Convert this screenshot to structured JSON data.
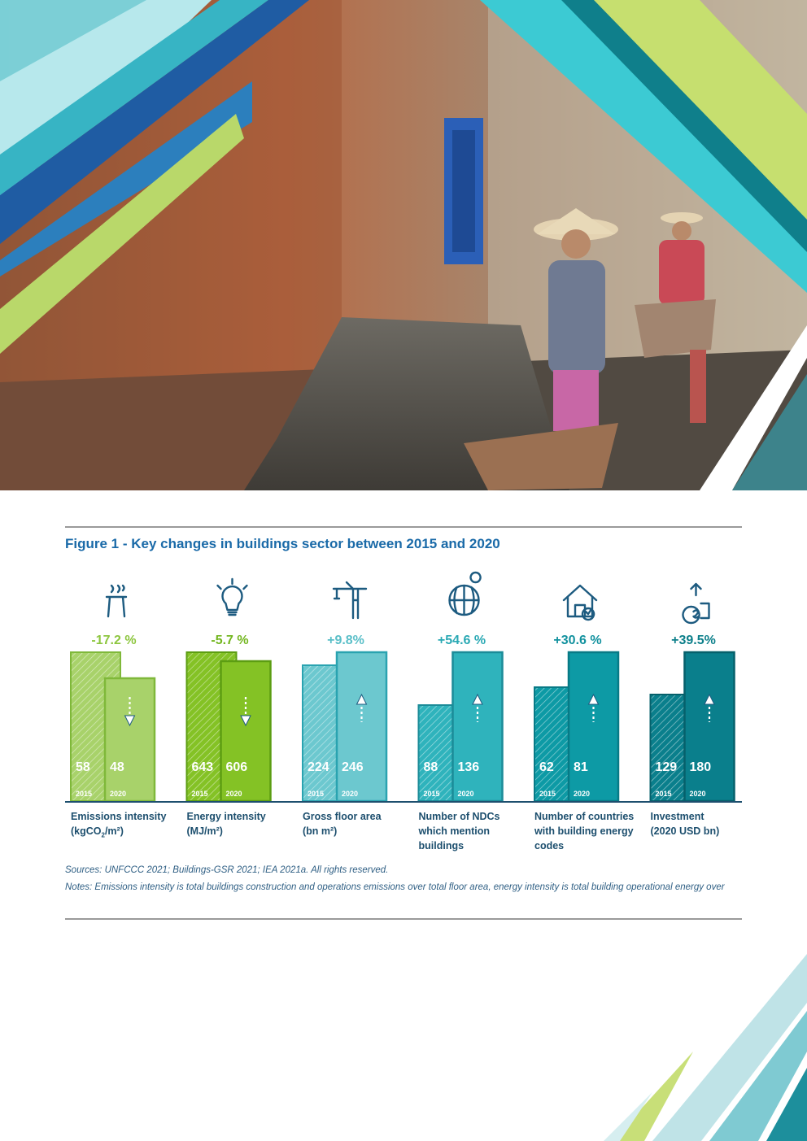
{
  "figure": {
    "title": "Figure 1 - Key changes in buildings sector between 2015 and 2020",
    "sources": "Sources: UNFCCC 2021; Buildings-GSR 2021; IEA 2021a. All rights reserved.",
    "notes": "Notes: Emissions intensity is total buildings construction and operations emissions over total floor area, energy intensity is total building operational energy over"
  },
  "chart_data": {
    "type": "bar",
    "years": [
      "2015",
      "2020"
    ],
    "categories": [
      {
        "label": [
          "Emissions intensity",
          "(kgCO2/m²)"
        ],
        "icon": "factory-chimney-icon",
        "change": "-17.2 %",
        "direction": "down",
        "values": [
          58,
          48
        ],
        "value_labels": [
          "58",
          "48"
        ],
        "color": "#a8d26a",
        "dark": "#7fb83a",
        "text": "#8dc63f"
      },
      {
        "label": [
          "Energy intensity",
          "(MJ/m²)"
        ],
        "icon": "light-bulb-icon",
        "change": "-5.7 %",
        "direction": "down",
        "values": [
          643,
          606
        ],
        "value_labels": [
          "643",
          "606"
        ],
        "color": "#84c225",
        "dark": "#5c9d12",
        "text": "#73b61f"
      },
      {
        "label": [
          "Gross floor area",
          "(bn m²)"
        ],
        "icon": "crane-icon",
        "change": "+9.8%",
        "direction": "up",
        "values": [
          224,
          246
        ],
        "value_labels": [
          "224",
          "246"
        ],
        "color": "#6cc8cf",
        "dark": "#2aa3b0",
        "text": "#5abfc8"
      },
      {
        "label": [
          "Number of NDCs",
          "which mention",
          "buildings"
        ],
        "icon": "globe-icon",
        "change": "+54.6 %",
        "direction": "up",
        "values": [
          88,
          136
        ],
        "value_labels": [
          "88",
          "136"
        ],
        "color": "#2fb3bc",
        "dark": "#1b8b98",
        "text": "#2aa9b4"
      },
      {
        "label": [
          "Number of countries",
          "with building energy",
          "codes"
        ],
        "icon": "house-check-icon",
        "change": "+30.6 %",
        "direction": "up",
        "values": [
          62,
          81
        ],
        "value_labels": [
          "62",
          "81"
        ],
        "color": "#0d9aa5",
        "dark": "#087a86",
        "text": "#11919e"
      },
      {
        "label": [
          "Investment",
          "(2020 USD bn)"
        ],
        "icon": "money-growth-icon",
        "change": "+39.5%",
        "direction": "up",
        "values": [
          129,
          180
        ],
        "value_labels": [
          "129",
          "180"
        ],
        "color": "#0a7f8c",
        "dark": "#06606b",
        "text": "#0c7f8a"
      }
    ]
  }
}
